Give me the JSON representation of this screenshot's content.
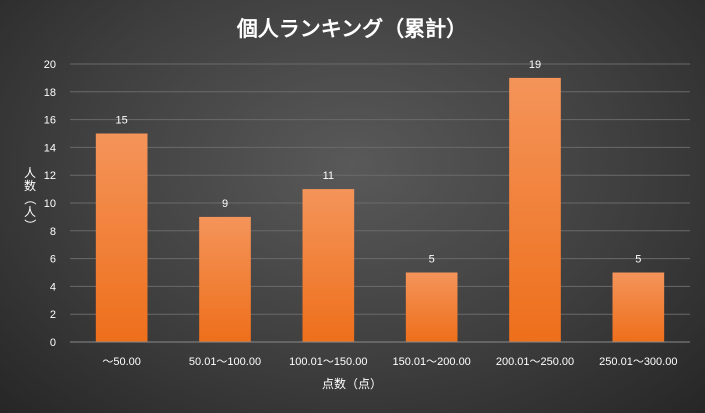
{
  "chart_data": {
    "type": "bar",
    "title": "個人ランキング（累計）",
    "xlabel": "点数（点）",
    "ylabel": "人数（人）",
    "categories": [
      "～50.00",
      "50.01～100.00",
      "100.01～150.00",
      "150.01～200.00",
      "200.01～250.00",
      "250.01～300.00"
    ],
    "values": [
      15,
      9,
      11,
      5,
      19,
      5
    ],
    "ylim": [
      0,
      20
    ],
    "yticks": [
      0,
      2,
      4,
      6,
      8,
      10,
      12,
      14,
      16,
      18,
      20
    ],
    "grid": true,
    "data_labels": true,
    "bar_color_top": "#f4945a",
    "bar_color_bottom": "#ee6f1b",
    "background": "#3f3f3f",
    "gridline_color": "#6a6a6a"
  }
}
